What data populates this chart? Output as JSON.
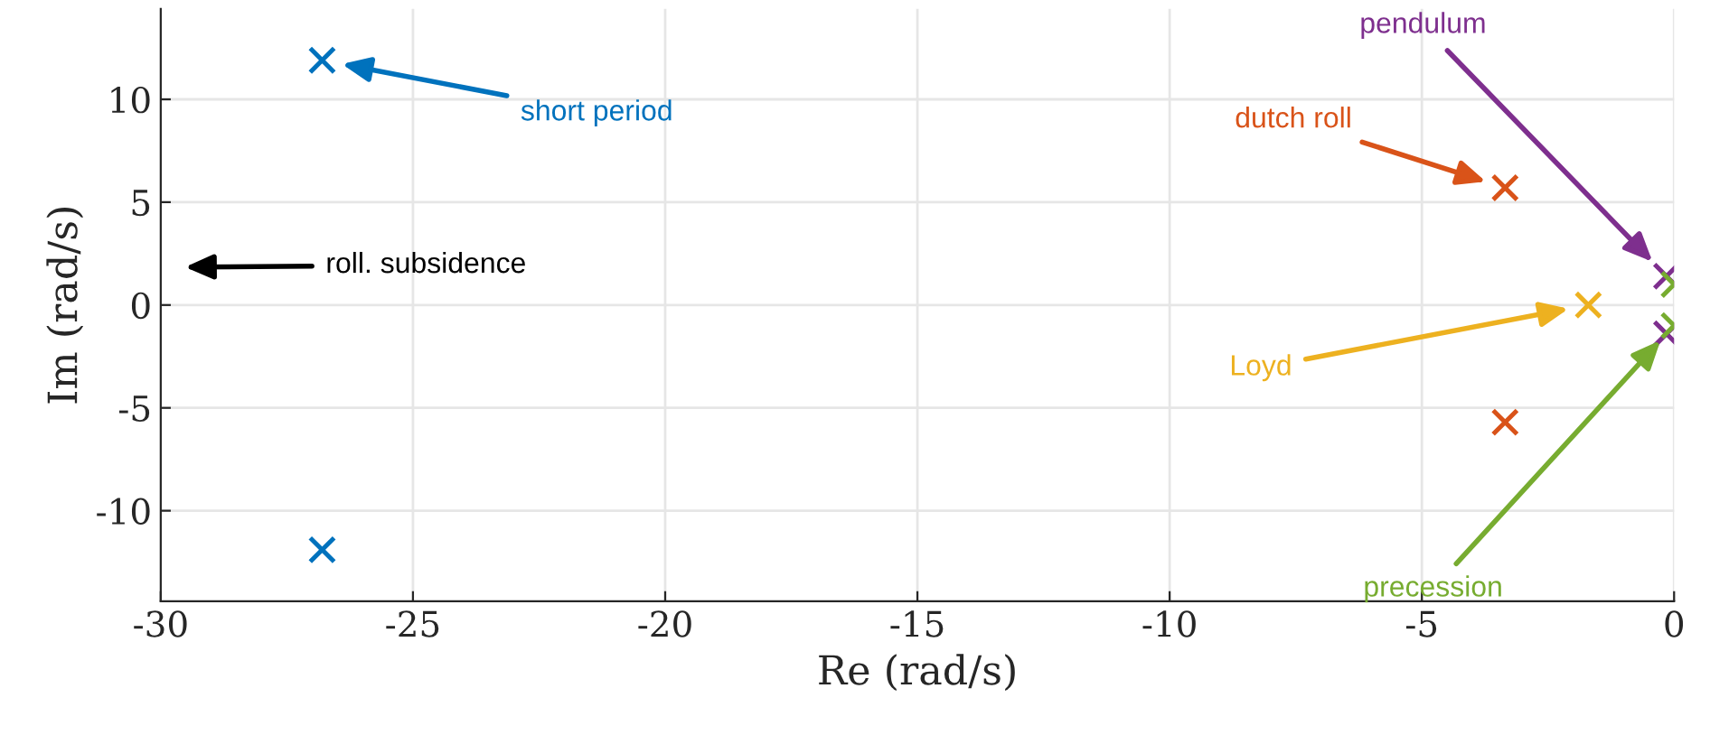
{
  "chart_data": {
    "type": "scatter",
    "xlabel": "Re (rad/s)",
    "ylabel": "Im (rad/s)",
    "xlim": [
      -30,
      0
    ],
    "ylim": [
      -14.4,
      14.4
    ],
    "xticks": [
      -30,
      -25,
      -20,
      -15,
      -10,
      -5,
      0
    ],
    "yticks": [
      -10,
      -5,
      0,
      5,
      10
    ],
    "grid": true,
    "legend": false,
    "marker": "cross",
    "series": [
      {
        "name": "short period",
        "color": "#0072bd",
        "x": [
          -26.8,
          -26.8
        ],
        "values": [
          11.9,
          -11.9
        ]
      },
      {
        "name": "dutch roll",
        "color": "#d95319",
        "x": [
          -3.35,
          -3.35
        ],
        "values": [
          5.7,
          -5.7
        ]
      },
      {
        "name": "Loyd",
        "color": "#edb120",
        "x": [
          -1.7
        ],
        "values": [
          0
        ]
      },
      {
        "name": "pendulum",
        "color": "#7e2f8e",
        "x": [
          -0.15,
          -0.15
        ],
        "values": [
          1.4,
          -1.4
        ]
      },
      {
        "name": "precession",
        "color": "#77ac30",
        "x": [
          0,
          0
        ],
        "values": [
          1.0,
          -1.0
        ]
      }
    ],
    "annotations": [
      "roll. subsidence"
    ]
  }
}
